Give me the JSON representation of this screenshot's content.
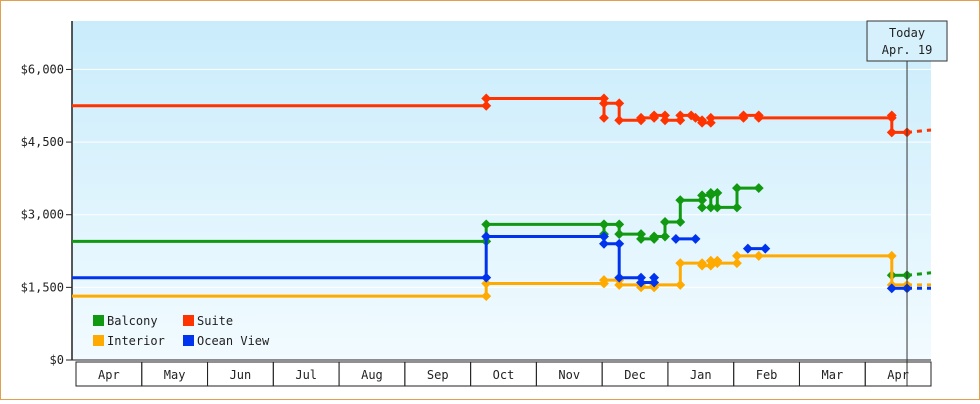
{
  "chart_data": {
    "type": "line",
    "title": "",
    "xlabel": "",
    "ylabel": "",
    "ylim": [
      0,
      7000
    ],
    "yticks": [
      {
        "value": 0,
        "label": "$0"
      },
      {
        "value": 1500,
        "label": "$1,500"
      },
      {
        "value": 3000,
        "label": "$3,000"
      },
      {
        "value": 4500,
        "label": "$4,500"
      },
      {
        "value": 6000,
        "label": "$6,000"
      }
    ],
    "xlim": [
      "2012-04-01",
      "2013-04-30"
    ],
    "months": [
      "Apr",
      "May",
      "Jun",
      "Jul",
      "Aug",
      "Sep",
      "Oct",
      "Nov",
      "Dec",
      "Jan",
      "Feb",
      "Mar",
      "Apr"
    ],
    "today": {
      "label_line1": "Today",
      "label_line2": "Apr. 19",
      "date": "2013-04-19"
    },
    "legend_position": "bottom-left",
    "series": [
      {
        "name": "Balcony",
        "color": "#119911",
        "points": [
          [
            "2012-04-01",
            2450
          ],
          [
            "2012-10-08",
            2450
          ],
          [
            "2012-10-08",
            2800
          ],
          [
            "2012-12-01",
            2800
          ],
          [
            "2012-12-01",
            2600
          ],
          [
            "2012-12-01",
            2800
          ],
          [
            "2012-12-08",
            2800
          ],
          [
            "2012-12-08",
            2600
          ],
          [
            "2012-12-18",
            2600
          ],
          [
            "2012-12-18",
            2500
          ],
          [
            "2012-12-24",
            2500
          ],
          [
            "2012-12-24",
            2550
          ],
          [
            "2012-12-29",
            2550
          ],
          [
            "2012-12-29",
            2850
          ],
          [
            "2013-01-05",
            2850
          ],
          [
            "2013-01-05",
            3300
          ],
          [
            "2013-01-15",
            3300
          ],
          [
            "2013-01-15",
            3150
          ],
          [
            "2013-01-15",
            3400
          ],
          [
            "2013-01-19",
            3400
          ],
          [
            "2013-01-19",
            3150
          ],
          [
            "2013-01-19",
            3450
          ],
          [
            "2013-01-22",
            3450
          ],
          [
            "2013-01-22",
            3150
          ],
          [
            "2013-01-31",
            3150
          ],
          [
            "2013-01-31",
            3550
          ],
          [
            "2013-02-10",
            3550
          ]
        ],
        "future": [
          [
            "2013-04-12",
            1750
          ],
          [
            "2013-04-19",
            1750
          ]
        ],
        "projected": [
          [
            "2013-04-19",
            1750
          ],
          [
            "2013-04-30",
            1800
          ]
        ]
      },
      {
        "name": "Suite",
        "color": "#ff3300",
        "points": [
          [
            "2012-04-01",
            5250
          ],
          [
            "2012-10-08",
            5250
          ],
          [
            "2012-10-08",
            5400
          ],
          [
            "2012-12-01",
            5400
          ],
          [
            "2012-12-01",
            5000
          ],
          [
            "2012-12-01",
            5300
          ],
          [
            "2012-12-08",
            5300
          ],
          [
            "2012-12-08",
            4950
          ],
          [
            "2012-12-18",
            4950
          ],
          [
            "2012-12-18",
            5000
          ],
          [
            "2012-12-24",
            5000
          ],
          [
            "2012-12-24",
            5050
          ],
          [
            "2012-12-29",
            5050
          ],
          [
            "2012-12-29",
            4950
          ],
          [
            "2013-01-05",
            4950
          ],
          [
            "2013-01-05",
            5050
          ],
          [
            "2013-01-10",
            5050
          ],
          [
            "2013-01-12",
            5000
          ],
          [
            "2013-01-15",
            4950
          ],
          [
            "2013-01-15",
            4900
          ],
          [
            "2013-01-19",
            4900
          ],
          [
            "2013-01-19",
            5000
          ],
          [
            "2013-02-03",
            5000
          ],
          [
            "2013-02-03",
            5050
          ],
          [
            "2013-02-10",
            5050
          ],
          [
            "2013-02-10",
            5000
          ],
          [
            "2013-04-12",
            5000
          ],
          [
            "2013-04-12",
            5050
          ],
          [
            "2013-04-12",
            4700
          ],
          [
            "2013-04-19",
            4700
          ]
        ],
        "projected": [
          [
            "2013-04-19",
            4700
          ],
          [
            "2013-04-30",
            4750
          ]
        ]
      },
      {
        "name": "Interior",
        "color": "#ffaa00",
        "points": [
          [
            "2012-04-01",
            1320
          ],
          [
            "2012-10-08",
            1320
          ],
          [
            "2012-10-08",
            1580
          ],
          [
            "2012-12-01",
            1580
          ],
          [
            "2012-12-01",
            1650
          ],
          [
            "2012-12-08",
            1650
          ],
          [
            "2012-12-08",
            1550
          ],
          [
            "2012-12-18",
            1550
          ],
          [
            "2012-12-18",
            1500
          ],
          [
            "2012-12-24",
            1500
          ],
          [
            "2012-12-24",
            1550
          ],
          [
            "2013-01-05",
            1550
          ],
          [
            "2013-01-05",
            2000
          ],
          [
            "2013-01-15",
            2000
          ],
          [
            "2013-01-15",
            1950
          ],
          [
            "2013-01-19",
            1950
          ],
          [
            "2013-01-19",
            2050
          ],
          [
            "2013-01-22",
            2050
          ],
          [
            "2013-01-22",
            2000
          ],
          [
            "2013-01-31",
            2000
          ],
          [
            "2013-01-31",
            2150
          ],
          [
            "2013-02-10",
            2150
          ],
          [
            "2013-04-12",
            2150
          ],
          [
            "2013-04-12",
            1550
          ],
          [
            "2013-04-19",
            1550
          ]
        ],
        "projected": [
          [
            "2013-04-19",
            1550
          ],
          [
            "2013-04-30",
            1550
          ]
        ]
      },
      {
        "name": "Ocean View",
        "color": "#0033ee",
        "points": [
          [
            "2012-04-01",
            1700
          ],
          [
            "2012-10-08",
            1700
          ],
          [
            "2012-10-08",
            2550
          ],
          [
            "2012-12-01",
            2550
          ],
          [
            "2012-12-01",
            2400
          ],
          [
            "2012-12-08",
            2400
          ],
          [
            "2012-12-08",
            1700
          ],
          [
            "2012-12-18",
            1700
          ],
          [
            "2012-12-18",
            1600
          ],
          [
            "2012-12-24",
            1600
          ],
          [
            "2012-12-24",
            1700
          ]
        ],
        "segments": [
          [
            [
              "2013-01-03",
              2500
            ],
            [
              "2013-01-12",
              2500
            ]
          ],
          [
            [
              "2013-02-05",
              2300
            ],
            [
              "2013-02-13",
              2300
            ]
          ]
        ],
        "future": [
          [
            "2013-04-12",
            1480
          ],
          [
            "2013-04-19",
            1480
          ]
        ],
        "projected": [
          [
            "2013-04-19",
            1480
          ],
          [
            "2013-04-30",
            1480
          ]
        ]
      }
    ]
  }
}
